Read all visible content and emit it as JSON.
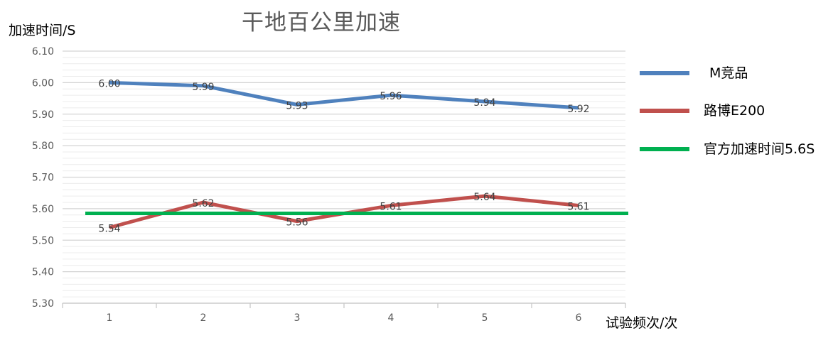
{
  "chart_data": {
    "type": "line",
    "title": "干地百公里加速",
    "ylabel": "加速时间/S",
    "xlabel": "试验频次/次",
    "ylim": [
      5.3,
      6.1
    ],
    "y_ticks": [
      "5.30",
      "5.40",
      "5.50",
      "5.60",
      "5.70",
      "5.80",
      "5.90",
      "6.00",
      "6.10"
    ],
    "categories": [
      "1",
      "2",
      "3",
      "4",
      "5",
      "6"
    ],
    "series": [
      {
        "name": "M竞品",
        "values": [
          6.0,
          5.99,
          5.93,
          5.96,
          5.94,
          5.92
        ],
        "labels": [
          "6.00",
          "5.99",
          "5.93",
          "5.96",
          "5.94",
          "5.92"
        ],
        "color": "#4f81bd"
      },
      {
        "name": "路博E200",
        "values": [
          5.54,
          5.62,
          5.56,
          5.61,
          5.64,
          5.61
        ],
        "labels": [
          "5.54",
          "5.62",
          "5.56",
          "5.61",
          "5.64",
          "5.61"
        ],
        "color": "#c0504d"
      },
      {
        "name": "官方加速时间5.6S",
        "values": [
          5.585,
          5.585,
          5.585,
          5.585,
          5.585,
          5.585
        ],
        "labels": [],
        "color": "#00b050",
        "reference_line": true
      }
    ],
    "grid": true,
    "legend_position": "right"
  }
}
